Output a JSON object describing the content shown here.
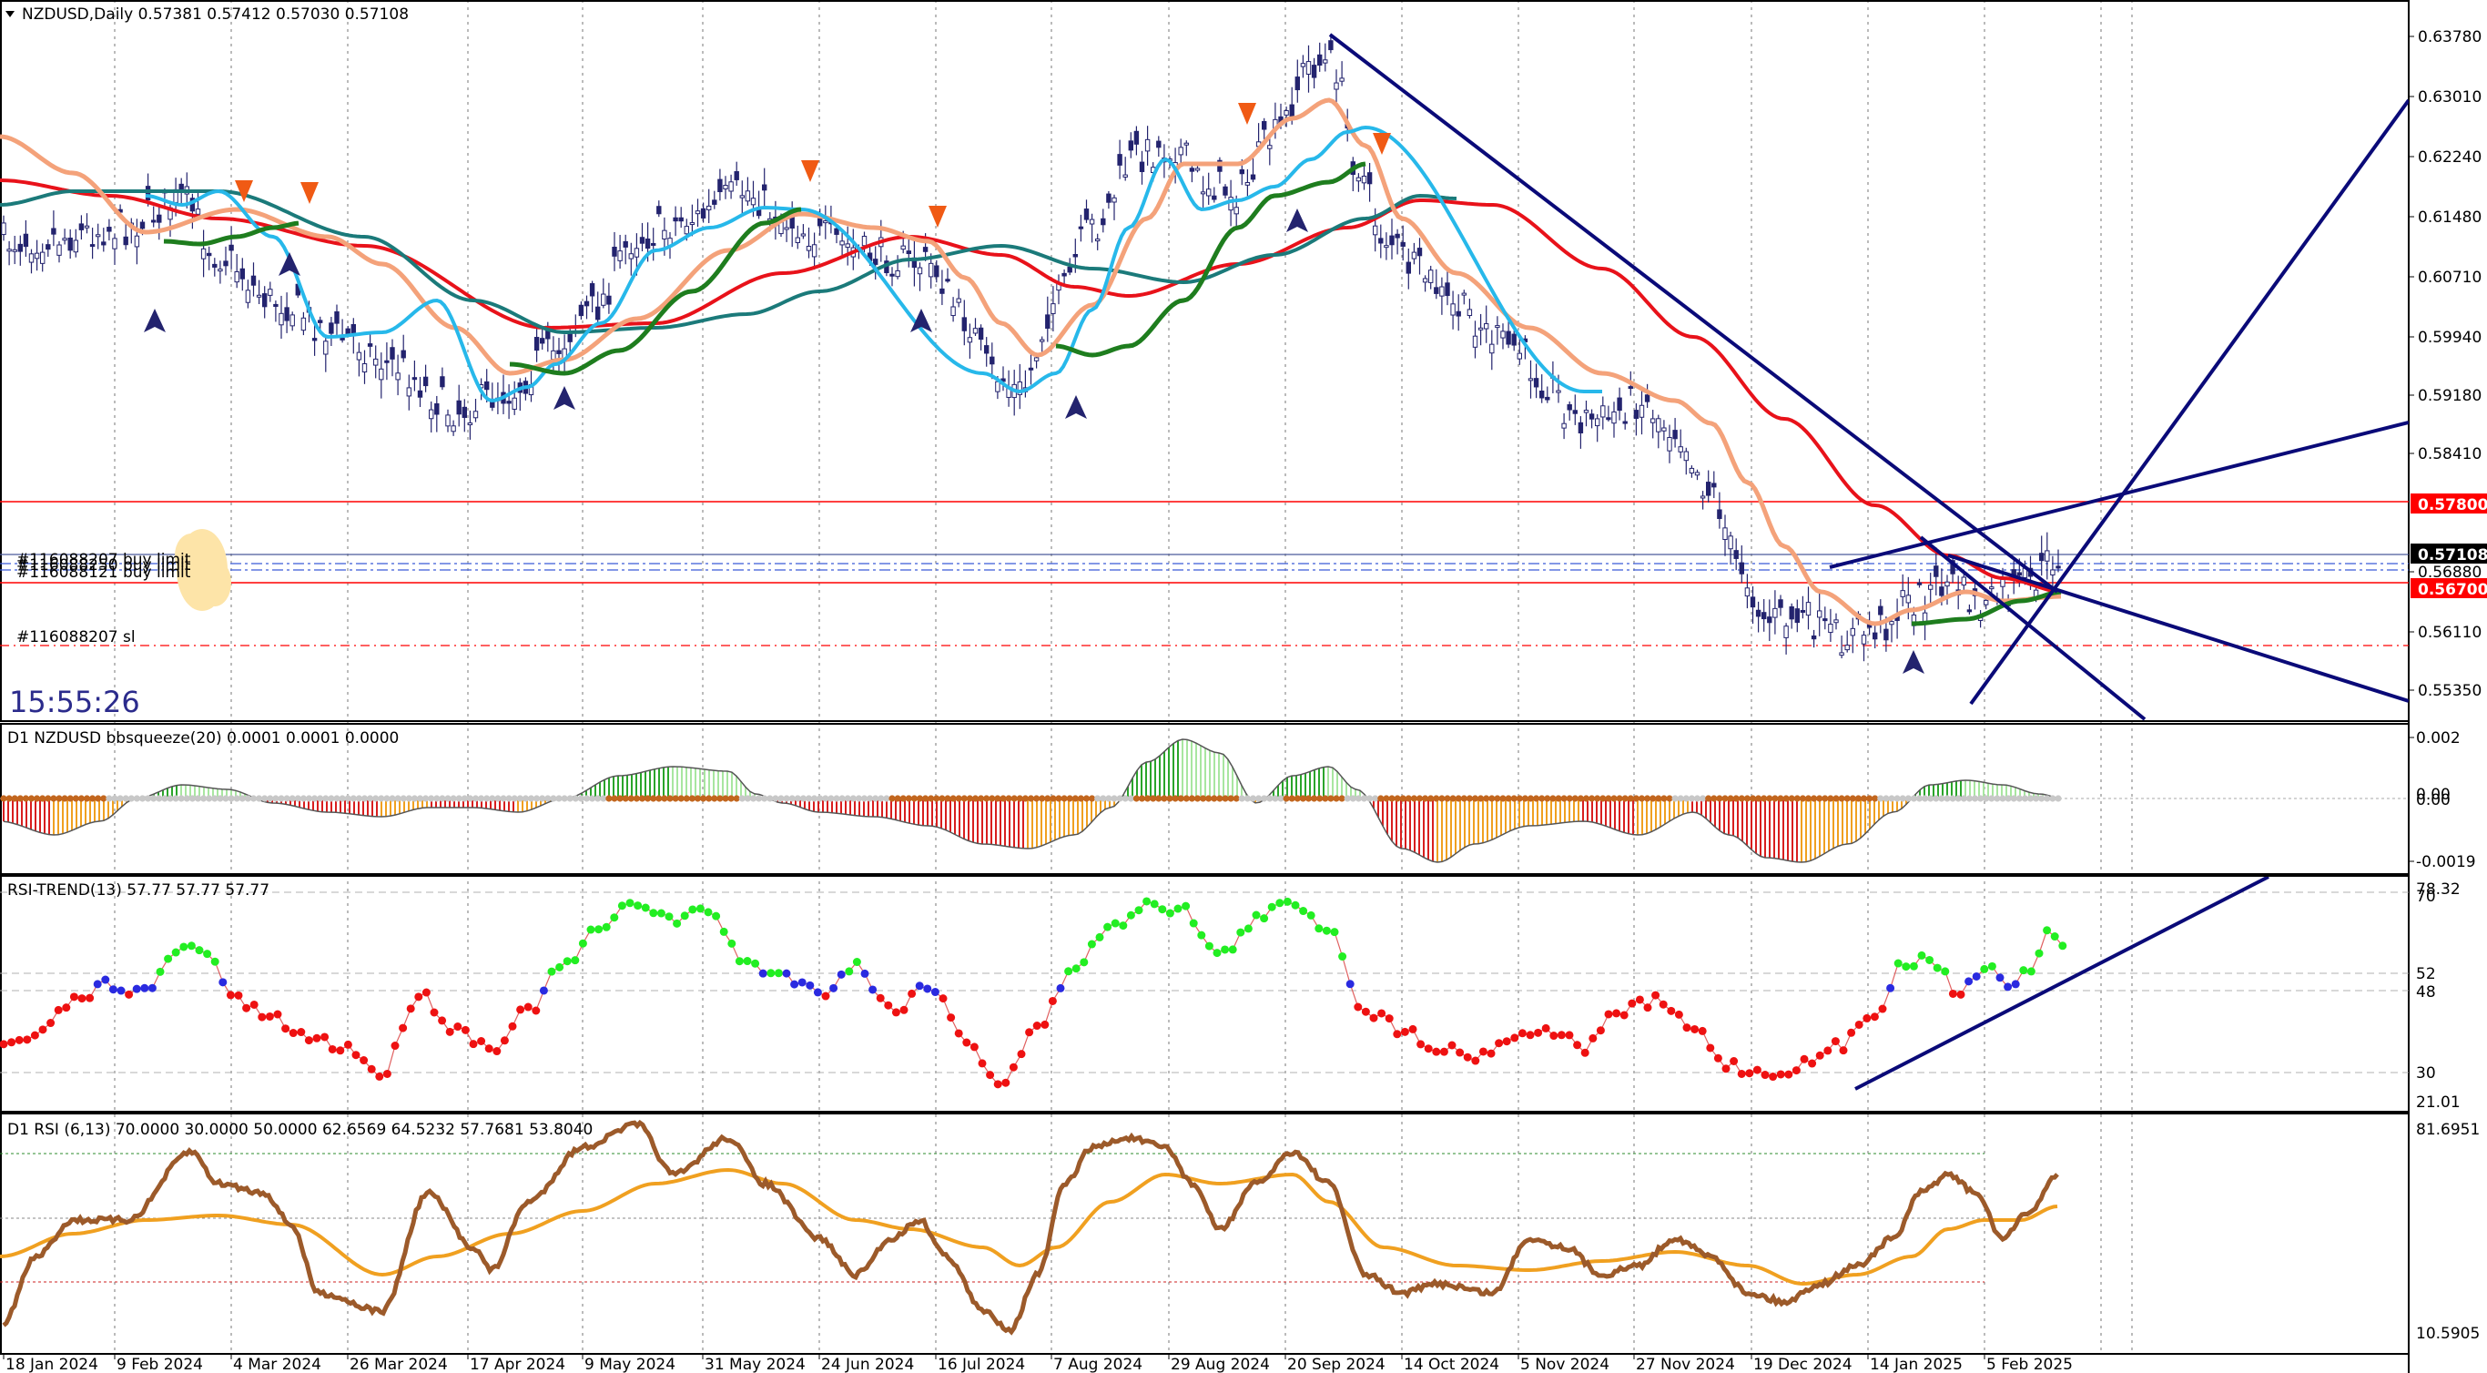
{
  "main": {
    "header": "NZDUSD,Daily  0.57381 0.57412 0.57030 0.57108",
    "clock": "15:55:26",
    "orders": [
      "#116088207 buy limit",
      "#116088250 buy limit",
      "#116088121 buy limit"
    ],
    "sl_label": "#116088207 sl",
    "price_ticks": [
      "0.63780",
      "0.63010",
      "0.62240",
      "0.61480",
      "0.60710",
      "0.59940",
      "0.59180",
      "0.58410",
      "0.56880",
      "0.56110",
      "0.55350"
    ],
    "tags": {
      "upper": "0.57800",
      "current": "0.57108",
      "lower": "0.56700"
    },
    "colors": {
      "current_tag": "#000000",
      "level_tag": "#ff0000"
    }
  },
  "bbsqueeze": {
    "header": "D1 NZDUSD bbsqueeze(20) 0.0001 0.0001 0.0000",
    "ticks": [
      "0.002",
      "0.00",
      "0.00",
      "-0.0019"
    ]
  },
  "rsi_trend": {
    "header": "RSI-TREND(13) 57.77 57.77 57.77",
    "ticks": [
      "78.32",
      "70",
      "52",
      "48",
      "30",
      "21.01"
    ]
  },
  "rsi": {
    "header": "D1 RSI  (6,13) 70.0000 30.0000 50.0000 62.6569 64.5232 57.7681 53.8040",
    "ticks": [
      "81.6951",
      "10.5905"
    ]
  },
  "dates": [
    "18 Jan 2024",
    "9 Feb 2024",
    "4 Mar 2024",
    "26 Mar 2024",
    "17 Apr 2024",
    "9 May 2024",
    "31 May 2024",
    "24 Jun 2024",
    "16 Jul 2024",
    "7 Aug 2024",
    "29 Aug 2024",
    "20 Sep 2024",
    "14 Oct 2024",
    "5 Nov 2024",
    "27 Nov 2024",
    "19 Dec 2024",
    "14 Jan 2025",
    "5 Feb 2025"
  ]
}
